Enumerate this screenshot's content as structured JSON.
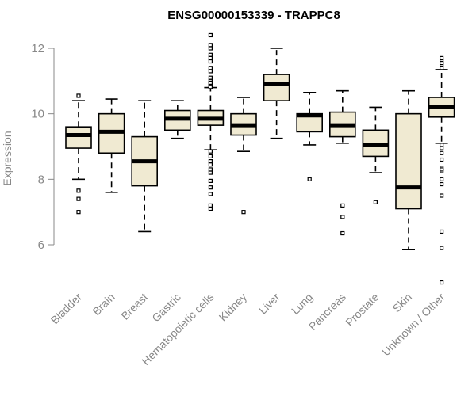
{
  "chart_data": {
    "type": "boxplot",
    "title": "ENSG00000153339 - TRAPPC8",
    "xlabel": "",
    "ylabel": "Expression",
    "ylim": [
      4.6,
      12.6
    ],
    "yticks": [
      6,
      8,
      10,
      12
    ],
    "box_fill": "#f0ead2",
    "categories": [
      "Bladder",
      "Brain",
      "Breast",
      "Gastric",
      "Hematopoietic cells",
      "Kidney",
      "Liver",
      "Lung",
      "Pancreas",
      "Prostate",
      "Skin",
      "Unknown / Other"
    ],
    "boxes": [
      {
        "name": "Bladder",
        "whisker_low": 8.0,
        "q1": 8.95,
        "median": 9.35,
        "q3": 9.6,
        "whisker_high": 10.4,
        "outliers": [
          10.55,
          7.65,
          7.4,
          7.0
        ]
      },
      {
        "name": "Brain",
        "whisker_low": 7.6,
        "q1": 8.8,
        "median": 9.45,
        "q3": 10.0,
        "whisker_high": 10.45,
        "outliers": []
      },
      {
        "name": "Breast",
        "whisker_low": 6.4,
        "q1": 7.8,
        "median": 8.55,
        "q3": 9.3,
        "whisker_high": 10.4,
        "outliers": []
      },
      {
        "name": "Gastric",
        "whisker_low": 9.25,
        "q1": 9.5,
        "median": 9.85,
        "q3": 10.1,
        "whisker_high": 10.4,
        "outliers": []
      },
      {
        "name": "Hematopoietic cells",
        "whisker_low": 8.9,
        "q1": 9.65,
        "median": 9.85,
        "q3": 10.1,
        "whisker_high": 10.8,
        "outliers": [
          12.4,
          12.1,
          11.8,
          11.6,
          11.4,
          11.3,
          11.1,
          11.0,
          10.9,
          10.85,
          10.82,
          10.95,
          11.7,
          12.0,
          8.85,
          8.7,
          8.55,
          8.45,
          8.3,
          8.2,
          7.95,
          7.75,
          7.55,
          7.2,
          7.1
        ]
      },
      {
        "name": "Kidney",
        "whisker_low": 8.85,
        "q1": 9.35,
        "median": 9.65,
        "q3": 10.0,
        "whisker_high": 10.5,
        "outliers": [
          7.0
        ]
      },
      {
        "name": "Liver",
        "whisker_low": 9.25,
        "q1": 10.4,
        "median": 10.9,
        "q3": 11.2,
        "whisker_high": 12.0,
        "outliers": []
      },
      {
        "name": "Lung",
        "whisker_low": 9.05,
        "q1": 9.45,
        "median": 9.95,
        "q3": 10.0,
        "whisker_high": 10.65,
        "outliers": [
          8.0
        ]
      },
      {
        "name": "Pancreas",
        "whisker_low": 9.1,
        "q1": 9.3,
        "median": 9.65,
        "q3": 10.05,
        "whisker_high": 10.7,
        "outliers": [
          7.2,
          6.85,
          6.35
        ]
      },
      {
        "name": "Prostate",
        "whisker_low": 8.2,
        "q1": 8.7,
        "median": 9.05,
        "q3": 9.5,
        "whisker_high": 10.2,
        "outliers": [
          7.3
        ]
      },
      {
        "name": "Skin",
        "whisker_low": 5.85,
        "q1": 7.1,
        "median": 7.75,
        "q3": 10.0,
        "whisker_high": 10.7,
        "outliers": []
      },
      {
        "name": "Unknown / Other",
        "whisker_low": 9.1,
        "q1": 9.9,
        "median": 10.2,
        "q3": 10.5,
        "whisker_high": 11.35,
        "outliers": [
          11.7,
          11.6,
          11.5,
          11.4,
          11.55,
          9.05,
          8.95,
          8.8,
          8.6,
          8.35,
          8.25,
          8.3,
          8.0,
          7.85,
          7.5,
          6.4,
          5.9,
          4.85
        ]
      }
    ]
  }
}
